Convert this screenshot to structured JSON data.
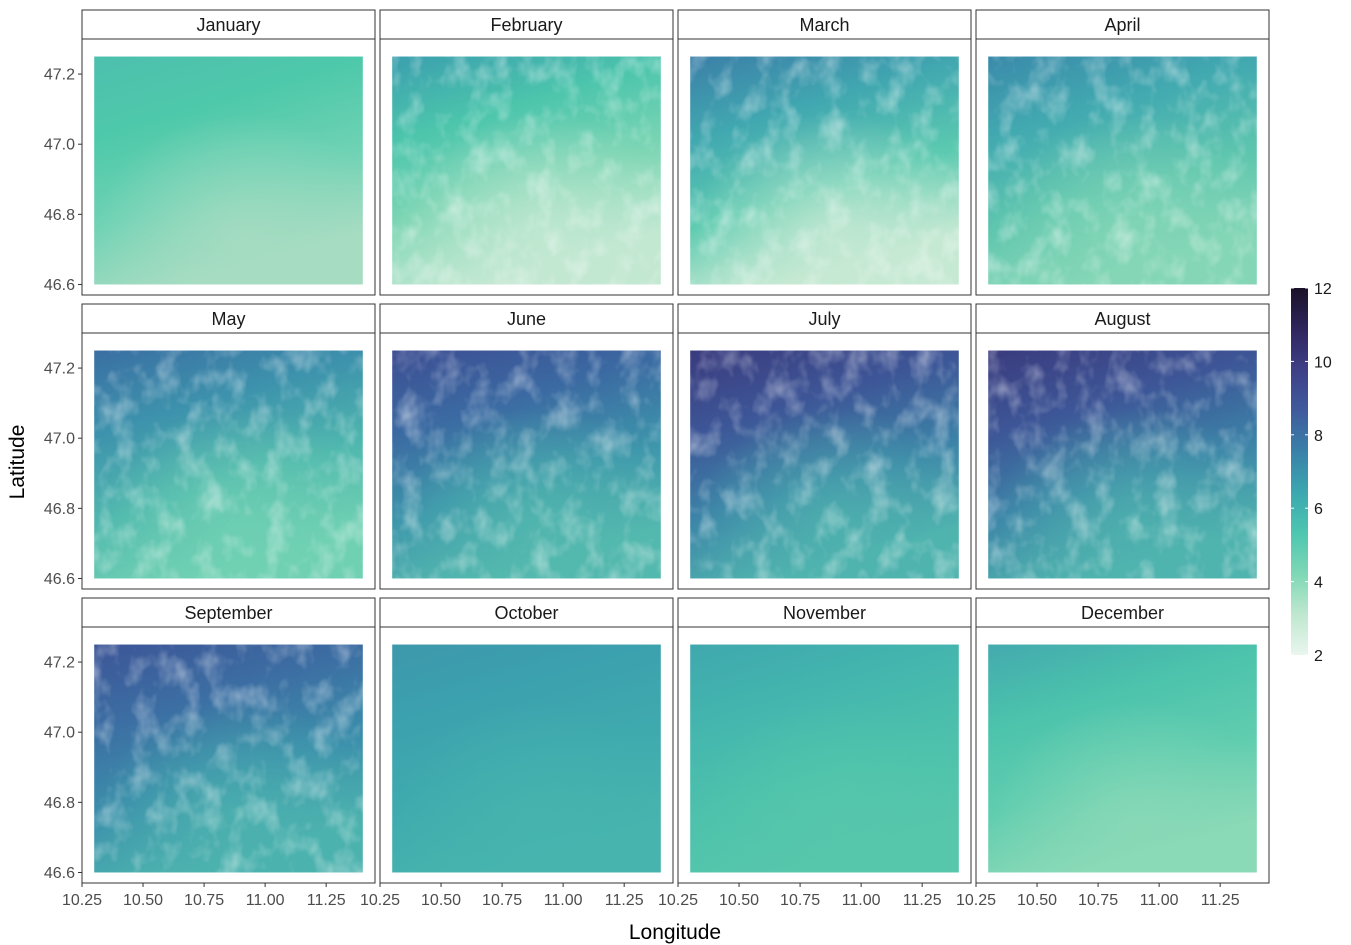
{
  "chart_data": {
    "type": "heatmap",
    "facet_layout": "3 rows x 4 columns",
    "xlabel": "Longitude",
    "ylabel": "Latitude",
    "x_ticks": [
      "10.25",
      "10.50",
      "10.75",
      "11.00",
      "11.25"
    ],
    "x_tick_values": [
      10.25,
      10.5,
      10.75,
      11.0,
      11.25
    ],
    "y_ticks": [
      "46.6",
      "46.8",
      "47.0",
      "47.2"
    ],
    "y_tick_values": [
      46.6,
      46.8,
      47.0,
      47.2
    ],
    "xlim": [
      10.25,
      11.45
    ],
    "ylim": [
      46.57,
      47.3
    ],
    "data_extent": {
      "lon": [
        10.3,
        11.4
      ],
      "lat": [
        46.6,
        47.25
      ]
    },
    "grid": false,
    "legend": {
      "placement": "right",
      "range": [
        2,
        12
      ],
      "ticks": [
        "2",
        "4",
        "6",
        "8",
        "10",
        "12"
      ],
      "tick_values": [
        2,
        4,
        6,
        8,
        10,
        12
      ],
      "colors": [
        "#e9f6ee",
        "#bfe8cf",
        "#7fd8b6",
        "#4ec7b0",
        "#3ba8b0",
        "#3a7fa8",
        "#3f5a9c",
        "#3e3f86",
        "#2e255c",
        "#1a1128"
      ]
    },
    "panels": [
      {
        "month": "January",
        "mean_value": 4.8,
        "range": [
          4.0,
          5.8
        ],
        "pattern": "smooth",
        "colors": [
          "#4dbfae",
          "#4ec9aa",
          "#6fd2b4",
          "#a6dcc2"
        ]
      },
      {
        "month": "February",
        "mean_value": 4.9,
        "range": [
          2.6,
          6.2
        ],
        "pattern": "valleys",
        "colors": [
          "#3b9fae",
          "#4cc5ac",
          "#7ed6b4",
          "#c3e8d2"
        ]
      },
      {
        "month": "March",
        "mean_value": 5.3,
        "range": [
          2.8,
          7.0
        ],
        "pattern": "valleys",
        "colors": [
          "#3b7fa8",
          "#41a8b0",
          "#5ccab0",
          "#c6e9d3"
        ]
      },
      {
        "month": "April",
        "mean_value": 5.6,
        "range": [
          4.2,
          6.6
        ],
        "pattern": "valleys",
        "colors": [
          "#3a8aaa",
          "#42aab0",
          "#5dc5ae",
          "#84d6b6"
        ]
      },
      {
        "month": "May",
        "mean_value": 6.3,
        "range": [
          4.8,
          7.3
        ],
        "pattern": "valleys",
        "colors": [
          "#3a6fa3",
          "#3d92ac",
          "#4fb7ae",
          "#6fd0b2"
        ]
      },
      {
        "month": "June",
        "mean_value": 7.6,
        "range": [
          5.5,
          9.2
        ],
        "pattern": "valleys",
        "colors": [
          "#3c4d92",
          "#3b6aa2",
          "#3d95ab",
          "#53b8ae"
        ]
      },
      {
        "month": "July",
        "mean_value": 8.2,
        "range": [
          5.8,
          10.2
        ],
        "pattern": "valleys",
        "colors": [
          "#3a3b7e",
          "#3d5697",
          "#3c84a8",
          "#4fb3ae"
        ]
      },
      {
        "month": "August",
        "mean_value": 8.0,
        "range": [
          5.8,
          10.0
        ],
        "pattern": "valleys",
        "colors": [
          "#3a3b7e",
          "#3d5697",
          "#3c84a8",
          "#4fb3ae"
        ]
      },
      {
        "month": "September",
        "mean_value": 7.0,
        "range": [
          5.2,
          8.4
        ],
        "pattern": "valleys",
        "colors": [
          "#3c5597",
          "#3c6ea3",
          "#3b8fab",
          "#4cb2ae"
        ]
      },
      {
        "month": "October",
        "mean_value": 6.0,
        "range": [
          5.5,
          6.5
        ],
        "pattern": "smooth",
        "colors": [
          "#3d98ac",
          "#3ca2ae",
          "#3fabae",
          "#47b4ae"
        ]
      },
      {
        "month": "November",
        "mean_value": 5.3,
        "range": [
          4.8,
          5.8
        ],
        "pattern": "smooth",
        "colors": [
          "#3fa8ae",
          "#44b6ae",
          "#4dc1ac",
          "#56c7ab"
        ]
      },
      {
        "month": "December",
        "mean_value": 4.9,
        "range": [
          3.9,
          5.8
        ],
        "pattern": "smooth",
        "colors": [
          "#43aaae",
          "#4cc3ac",
          "#60cdaf",
          "#8ad9b7"
        ]
      }
    ]
  }
}
